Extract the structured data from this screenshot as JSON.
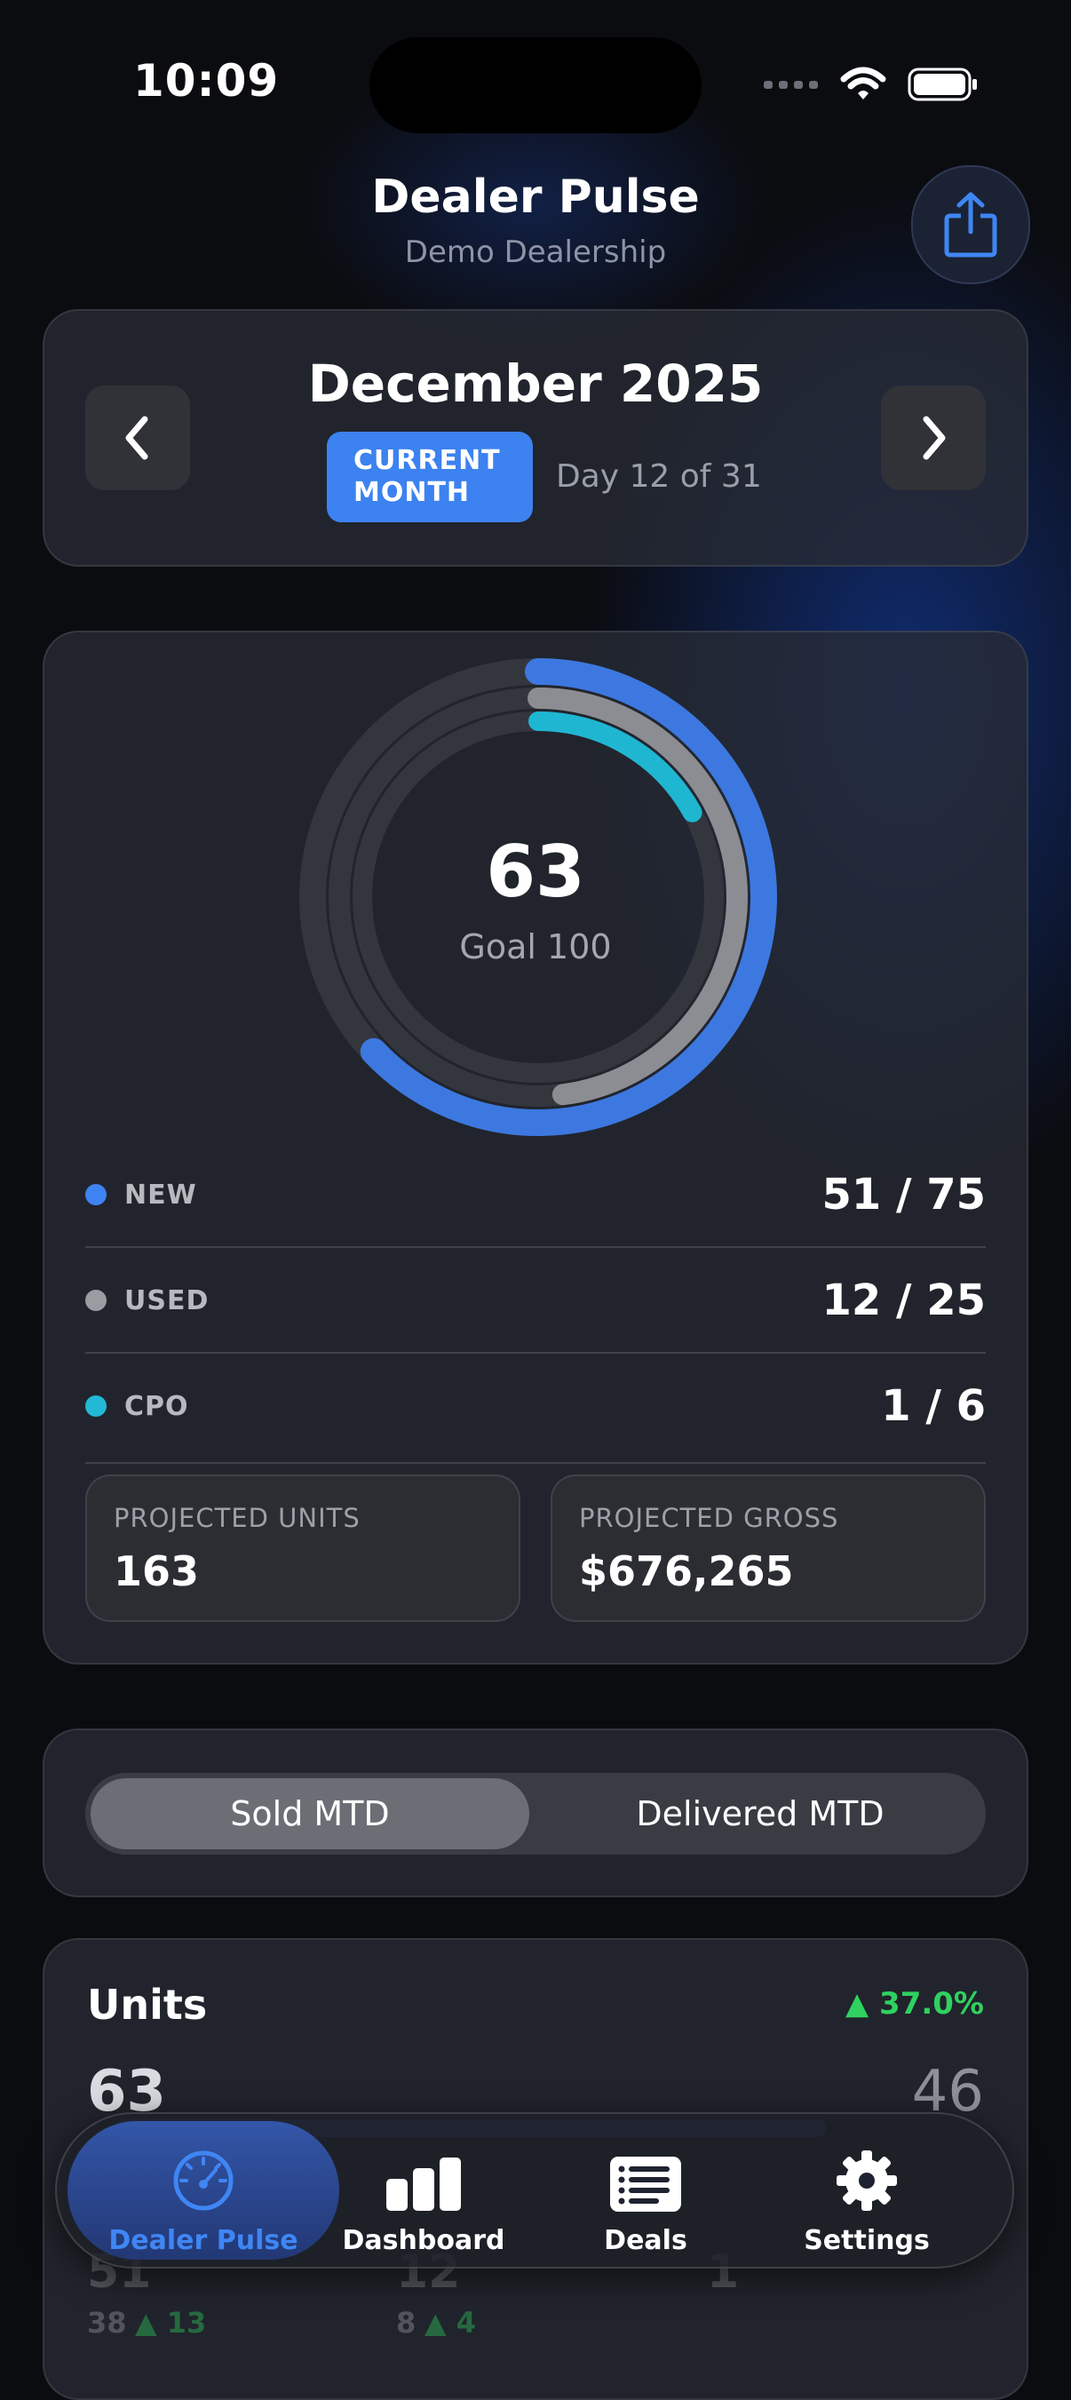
{
  "status_bar": {
    "time": "10:09"
  },
  "header": {
    "title": "Dealer Pulse",
    "subtitle": "Demo Dealership"
  },
  "month_nav": {
    "title": "December 2025",
    "badge_line1": "CURRENT",
    "badge_line2": "MONTH",
    "day_text": "Day 12 of 31"
  },
  "pulse": {
    "total": "63",
    "goal_text": "Goal 100",
    "rings": {
      "total_fraction": 0.63,
      "used_fraction": 0.48,
      "cpo_fraction": 0.17
    },
    "rows": [
      {
        "label": "NEW",
        "value": "51 / 75",
        "color": "#3f82f2"
      },
      {
        "label": "USED",
        "value": "12 / 25",
        "color": "#9b9ca1"
      },
      {
        "label": "CPO",
        "value": "1 / 6",
        "color": "#22b8d6"
      }
    ],
    "projected_units_label": "PROJECTED UNITS",
    "projected_units_value": "163",
    "projected_gross_label": "PROJECTED GROSS",
    "projected_gross_value": "$676,265"
  },
  "segment": {
    "option1": "Sold MTD",
    "option2": "Delivered MTD",
    "selected": "Sold MTD"
  },
  "units": {
    "title": "Units",
    "change": "▲ 37.0%",
    "current": "63",
    "previous": "46",
    "under_new": "51",
    "under_used": "12",
    "under_cpo": "1",
    "under_new_prev": "38",
    "under_new_change": "▲ 13",
    "under_used_prev": "8",
    "under_used_change": "▲ 4"
  },
  "tabs": [
    {
      "label": "Dealer Pulse",
      "icon": "speedometer-icon",
      "active": true
    },
    {
      "label": "Dashboard",
      "icon": "bar-chart-icon",
      "active": false
    },
    {
      "label": "Deals",
      "icon": "list-icon",
      "active": false
    },
    {
      "label": "Settings",
      "icon": "gear-icon",
      "active": false
    }
  ],
  "colors": {
    "accent": "#3c82f0",
    "positive": "#2fd160",
    "cpo": "#22b8d6",
    "used": "#9b9ca1"
  }
}
